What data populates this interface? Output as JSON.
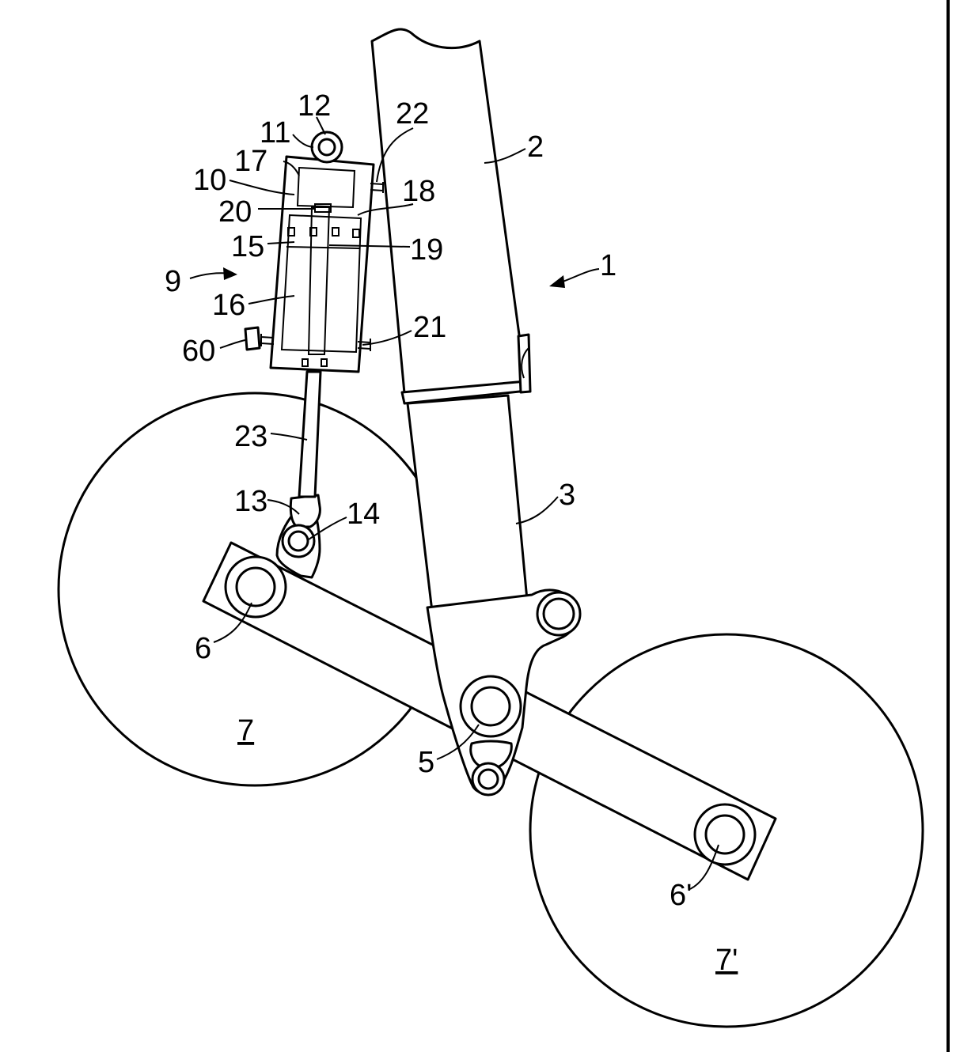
{
  "labels": {
    "l1": "1",
    "l2": "2",
    "l3": "3",
    "l5": "5",
    "l6": "6",
    "l6p": "6'",
    "l7": "7",
    "l7p": "7'",
    "l9": "9",
    "l10": "10",
    "l11": "11",
    "l12": "12",
    "l13": "13",
    "l14": "14",
    "l15": "15",
    "l16": "16",
    "l17": "17",
    "l18": "18",
    "l19": "19",
    "l20": "20",
    "l21": "21",
    "l22": "22",
    "l23": "23",
    "l60": "60"
  }
}
